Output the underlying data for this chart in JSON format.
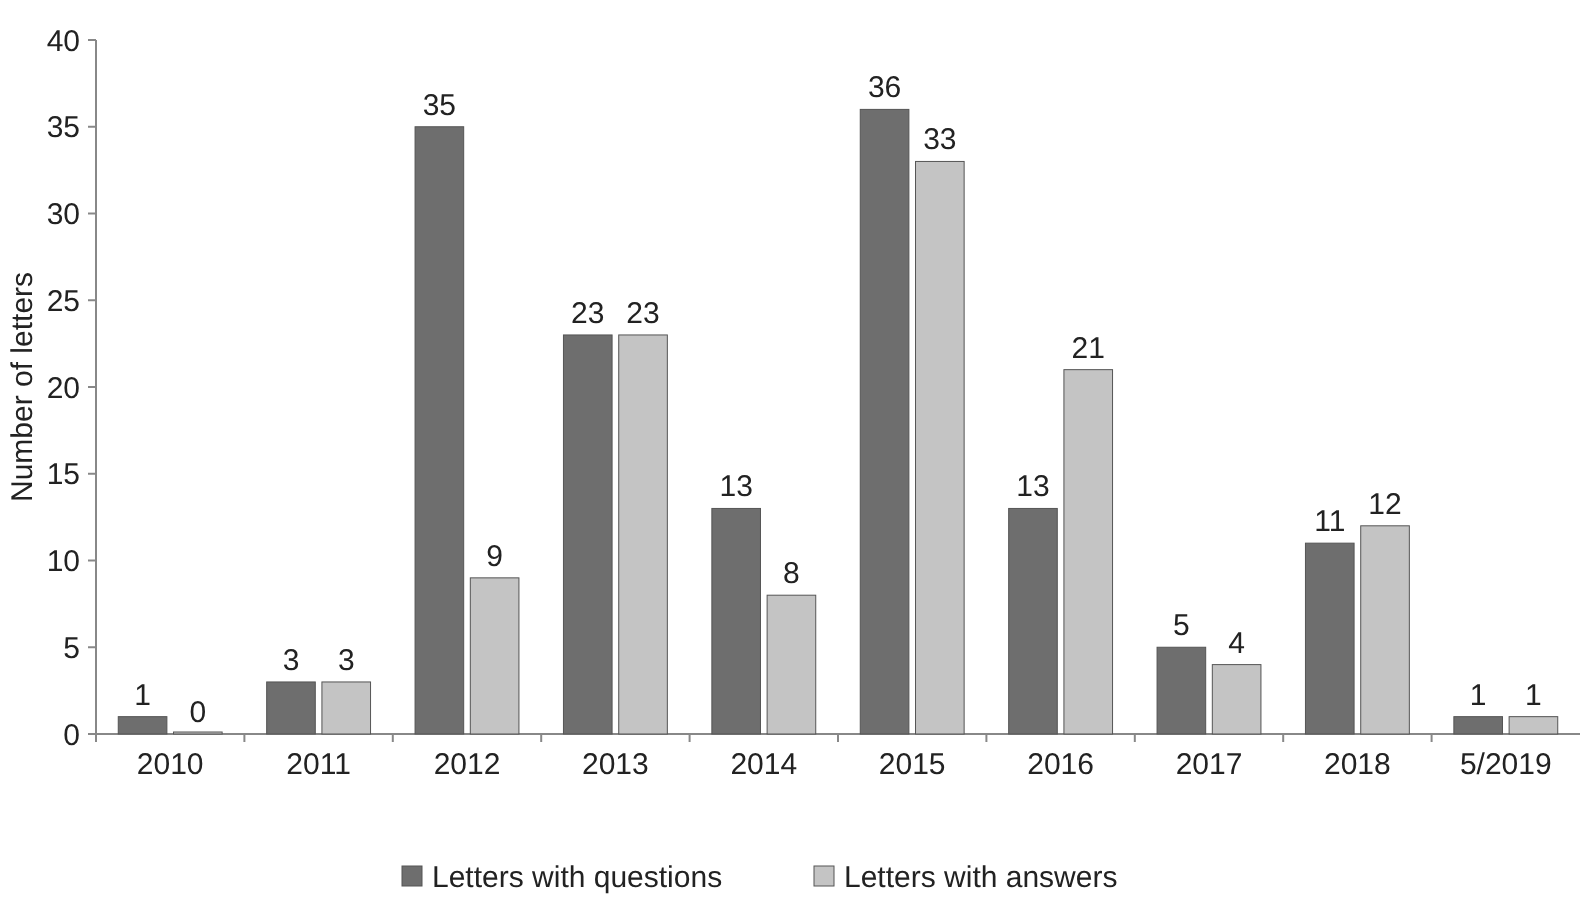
{
  "chart_data": {
    "type": "bar",
    "ylabel": "Number of letters",
    "categories": [
      "2010",
      "2011",
      "2012",
      "2013",
      "2014",
      "2015",
      "2016",
      "2017",
      "2018",
      "5/2019"
    ],
    "series": [
      {
        "name": "Letters with questions",
        "color": "#6e6e6e",
        "values": [
          1,
          3,
          35,
          23,
          13,
          36,
          13,
          5,
          11,
          1
        ]
      },
      {
        "name": "Letters with answers",
        "color": "#c4c4c4",
        "values": [
          0,
          3,
          9,
          23,
          8,
          33,
          21,
          4,
          12,
          1
        ]
      }
    ],
    "ylim": [
      0,
      40
    ],
    "yticks": [
      0,
      5,
      10,
      15,
      20,
      25,
      30,
      35,
      40
    ],
    "data_labels": true,
    "legend": "bottom",
    "grid": false
  }
}
